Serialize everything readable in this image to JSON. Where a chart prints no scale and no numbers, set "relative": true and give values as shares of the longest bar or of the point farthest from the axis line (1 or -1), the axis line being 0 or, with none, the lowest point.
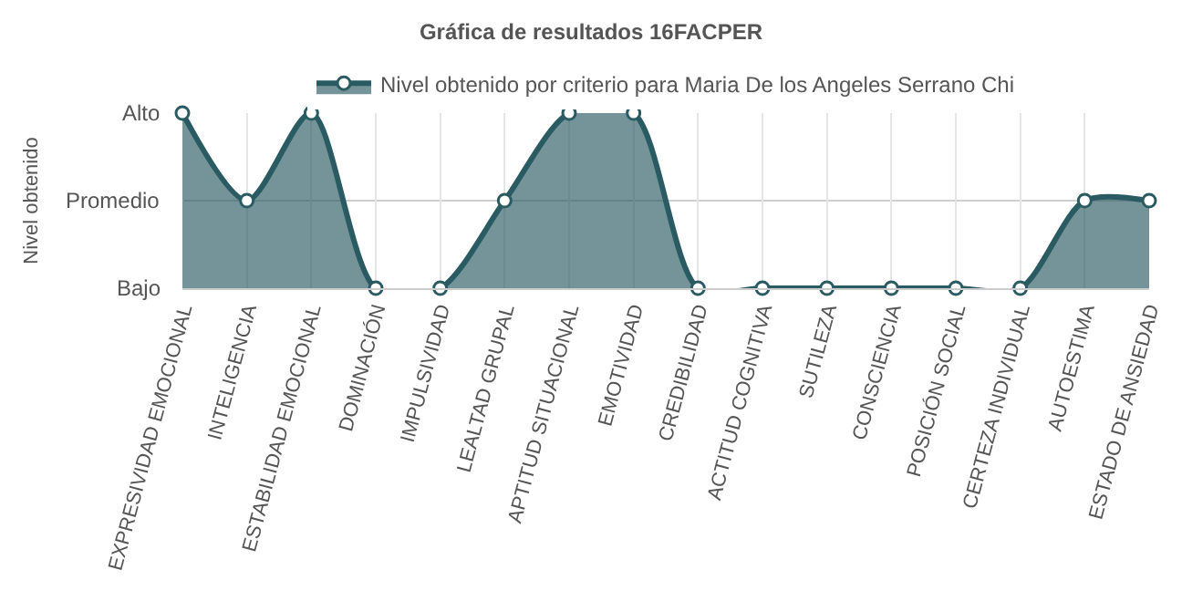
{
  "chart_data": {
    "type": "area",
    "title": "Gráfica de resultados 16FACPER",
    "ylabel": "Nivel obtenido",
    "categories": [
      "EXPRESIVIDAD EMOCIONAL",
      "INTELIGENCIA",
      "ESTABILIDAD EMOCIONAL",
      "DOMINACIÓN",
      "IMPULSIVIDAD",
      "LEALTAD GRUPAL",
      "APTITUD SITUACIONAL",
      "EMOTIVIDAD",
      "CREDIBILIDAD",
      "ACTITUD COGNITIVA",
      "SUTILEZA",
      "CONSCIENCIA",
      "POSICIÓN SOCIAL",
      "CERTEZA INDIVIDUAL",
      "AUTOESTIMA",
      "ESTADO DE ANSIEDAD"
    ],
    "series": [
      {
        "name": "Nivel obtenido por criterio para Maria De los Angeles Serrano Chi",
        "color": "#2a5b63",
        "values": [
          1,
          0.5,
          1,
          0,
          0,
          0.5,
          1,
          1,
          0,
          0,
          0,
          0,
          0,
          0,
          0.5,
          0.5
        ]
      }
    ],
    "relative": true,
    "annotations": [
      "Alto",
      "Bajo"
    ],
    "ref_lines": [
      {
        "axis": "y",
        "value": 0.5,
        "label": "Promedio",
        "color": "#cfcfcf"
      }
    ],
    "grid": "x",
    "legend": "top",
    "marker": "circle",
    "line_style": "solid"
  }
}
